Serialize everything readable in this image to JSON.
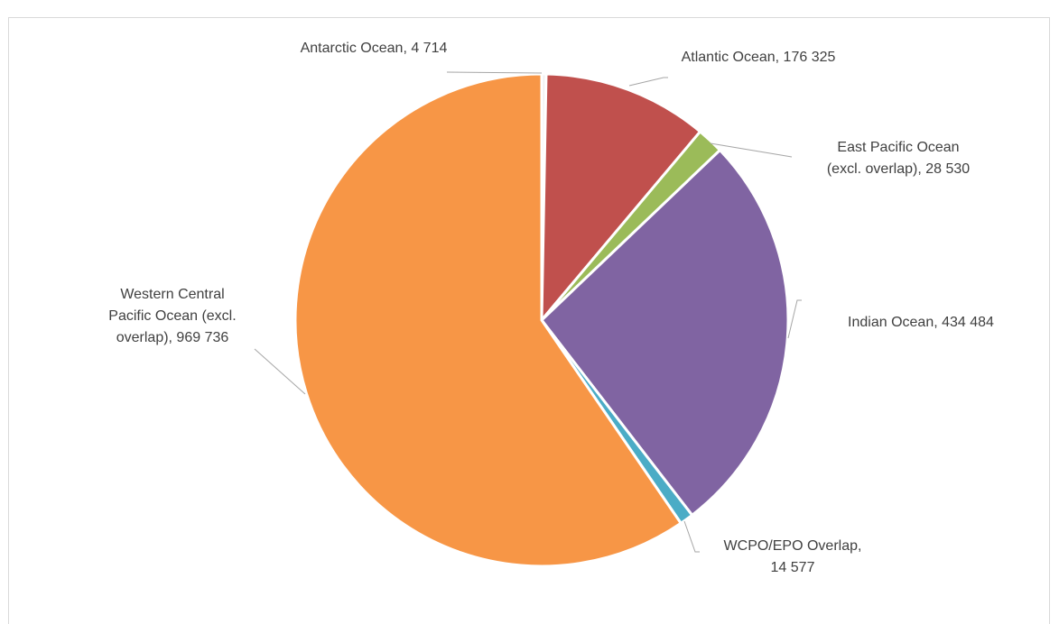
{
  "heading": "",
  "chart_data": {
    "type": "pie",
    "title": "",
    "slices": [
      {
        "name": "Antarctic Ocean",
        "value": 4714,
        "label": [
          "Antarctic Ocean, 4 714"
        ],
        "color": "#f0f0f0"
      },
      {
        "name": "Atlantic Ocean",
        "value": 176325,
        "label": [
          "Atlantic Ocean, 176 325"
        ],
        "color": "#c0504d"
      },
      {
        "name": "East Pacific Ocean (excl. overlap)",
        "value": 28530,
        "label": [
          "East Pacific Ocean",
          "(excl. overlap), 28 530"
        ],
        "color": "#9bbb59"
      },
      {
        "name": "Indian Ocean",
        "value": 434484,
        "label": [
          "Indian Ocean, 434 484"
        ],
        "color": "#8064a2"
      },
      {
        "name": "WCPO/EPO Overlap",
        "value": 14577,
        "label": [
          "WCPO/EPO Overlap,",
          "14 577"
        ],
        "color": "#4bacc6"
      },
      {
        "name": "Western Central Pacific Ocean (excl. overlap)",
        "value": 969736,
        "label": [
          "Western Central",
          "Pacific Ocean (excl.",
          "overlap), 969 736"
        ],
        "color": "#f79646"
      }
    ],
    "legend": "none",
    "start_angle": "12 o'clock",
    "direction": "clockwise"
  }
}
